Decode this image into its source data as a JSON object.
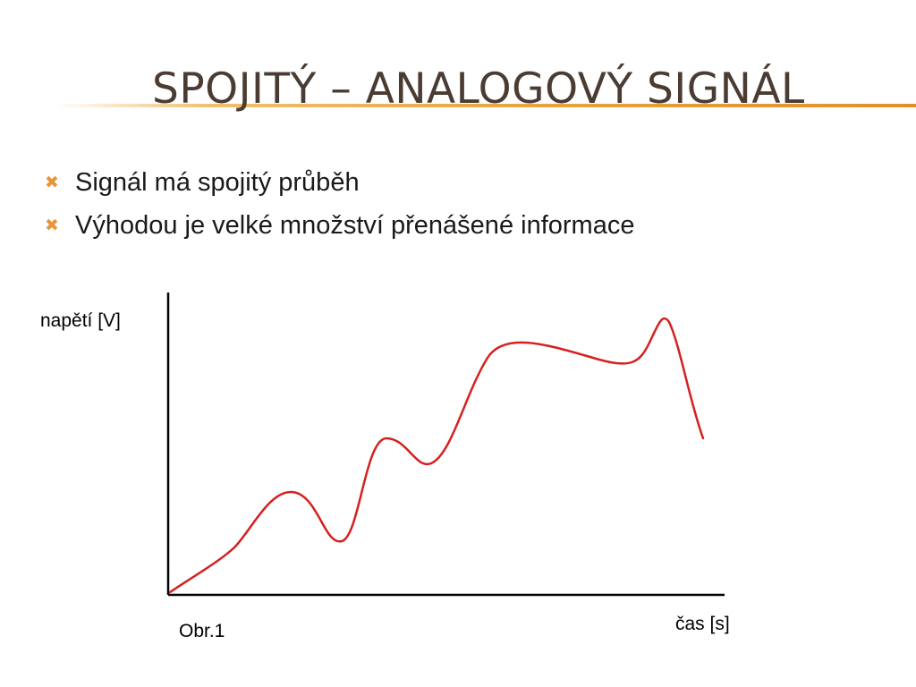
{
  "slide": {
    "title": "Spojitý – analogový signál",
    "bullet_icon": "x-mark-icon",
    "accent_color": "#e8953a",
    "bullets": [
      "Signál má spojitý průběh",
      "Výhodou je velké množství přenášené informace"
    ]
  },
  "figure": {
    "ylabel": "napětí [V]",
    "xlabel": "čas [s]",
    "caption": "Obr.1",
    "curve_color": "#d62020",
    "axis_color": "#000000",
    "curve_description": "continuous analog waveform"
  }
}
